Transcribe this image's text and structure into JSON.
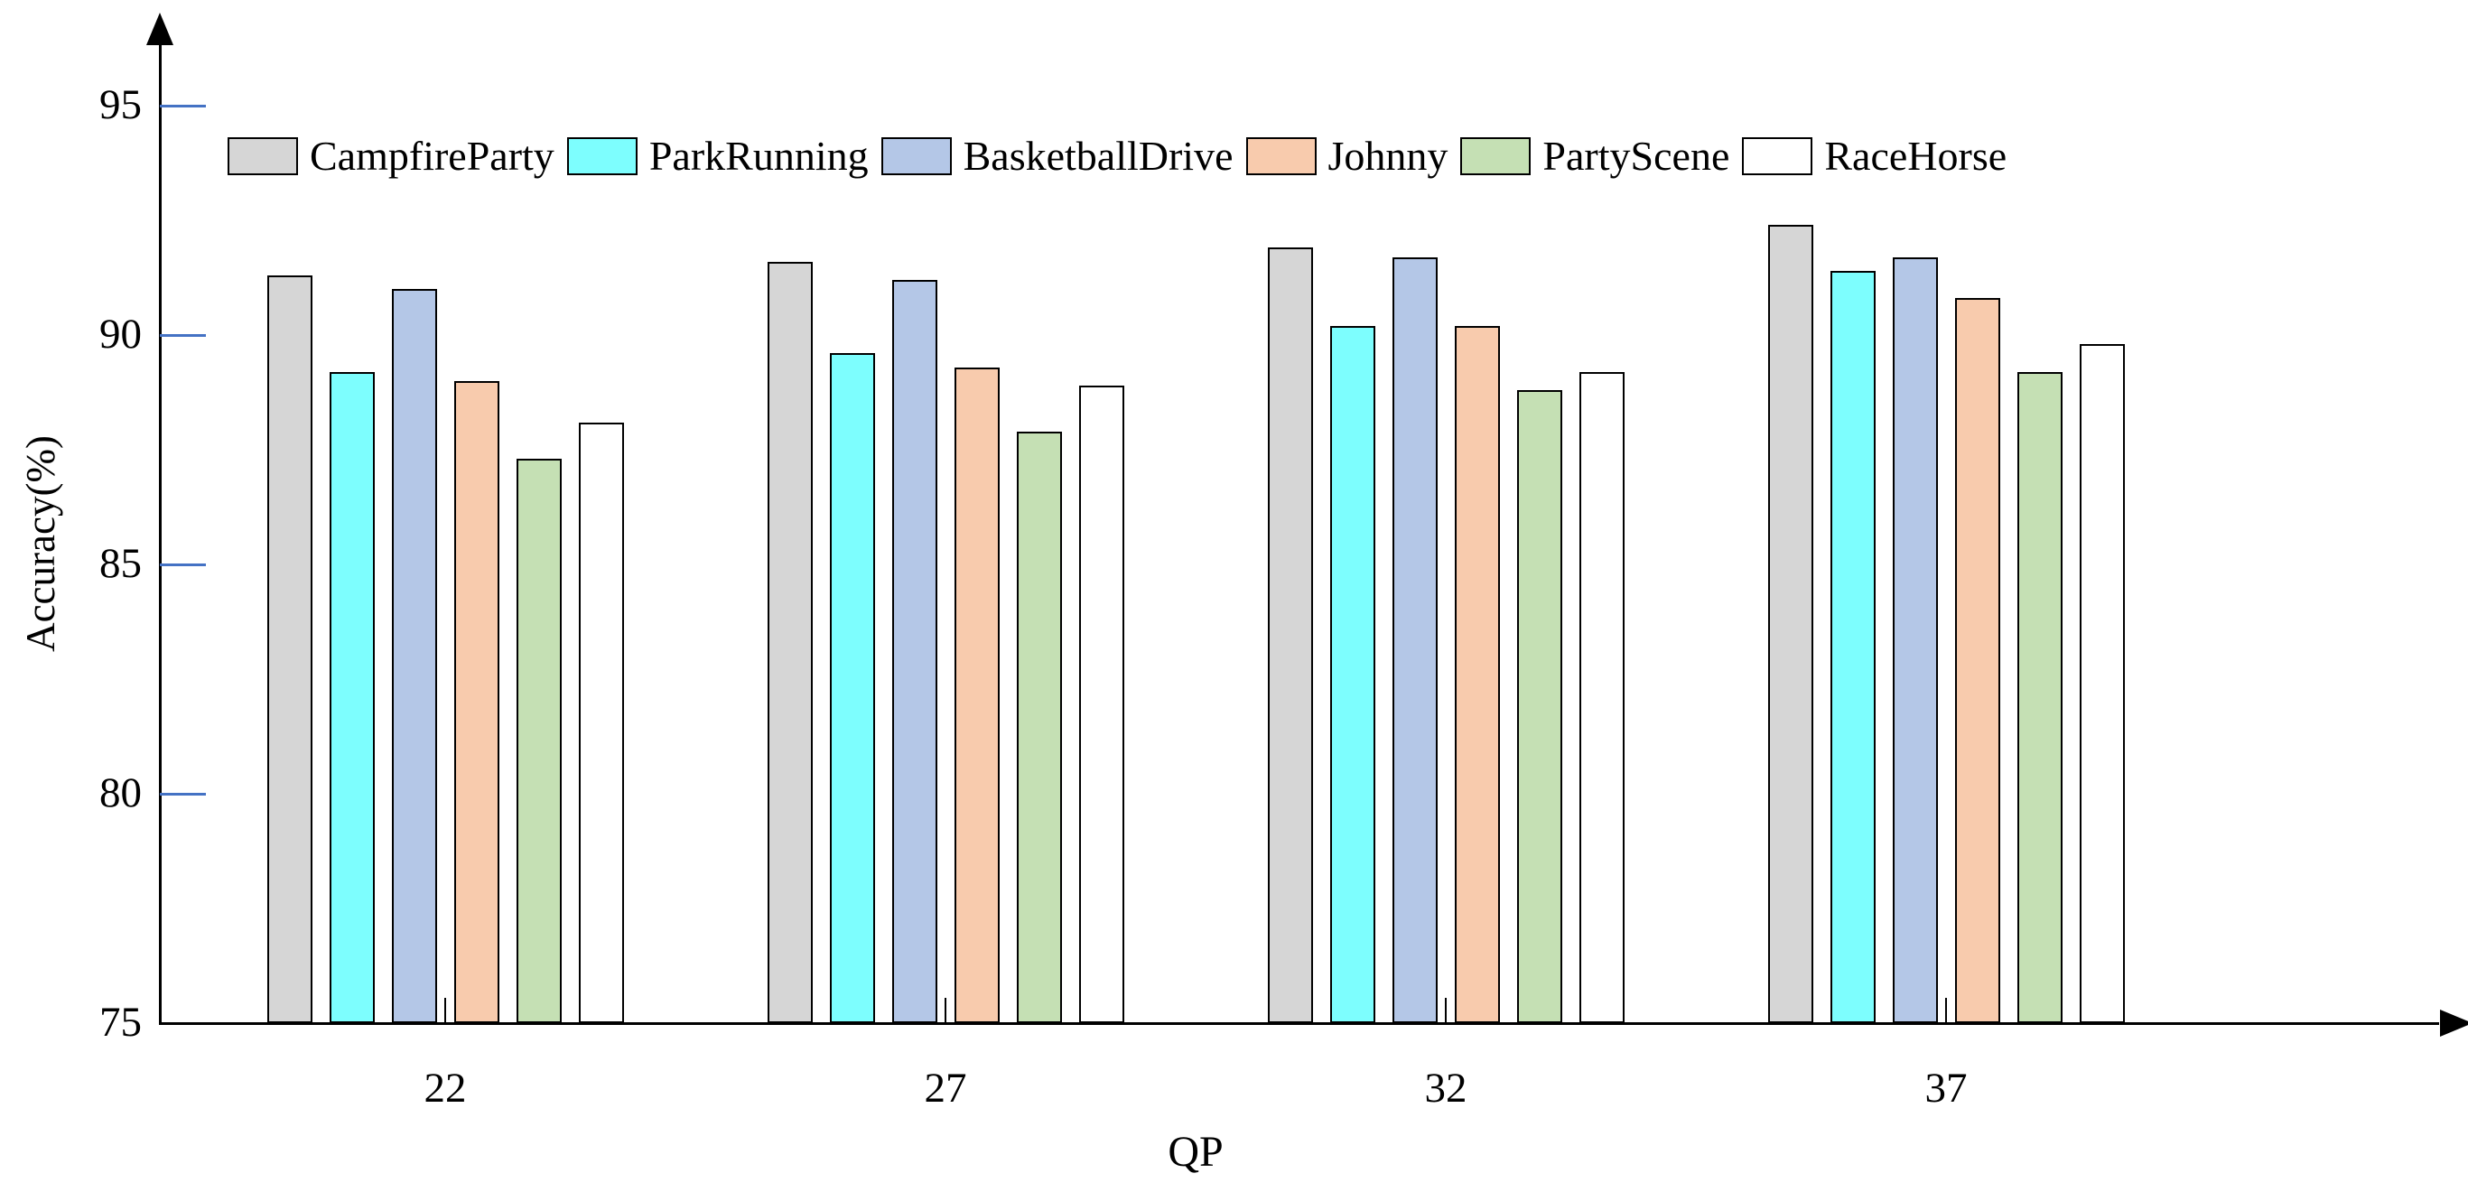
{
  "chart_data": {
    "type": "bar",
    "title": "",
    "xlabel": "QP",
    "ylabel": "Accuracy(%)",
    "categories": [
      "22",
      "27",
      "32",
      "37"
    ],
    "y_ticks": [
      "75",
      "80",
      "85",
      "90",
      "95"
    ],
    "ylim": [
      75,
      97
    ],
    "grid": false,
    "legend_position": "top-left-inside",
    "axis_color": "#000000",
    "ytick_dash_color": "#4472C4",
    "bar_border_color": "#000000",
    "series": [
      {
        "name": "CampfireParty",
        "color": "#D6D6D6",
        "values": [
          91.3,
          91.6,
          91.9,
          92.4
        ]
      },
      {
        "name": "ParkRunning",
        "color": "#7DFEFE",
        "values": [
          89.2,
          89.6,
          90.2,
          91.4
        ]
      },
      {
        "name": "BasketballDrive",
        "color": "#B4C7E7",
        "values": [
          91.0,
          91.2,
          91.7,
          91.7
        ]
      },
      {
        "name": "Johnny",
        "color": "#F8CBAD",
        "values": [
          89.0,
          89.3,
          90.2,
          90.8
        ]
      },
      {
        "name": "PartyScene",
        "color": "#C5E0B4",
        "values": [
          87.3,
          87.9,
          88.8,
          89.2
        ]
      },
      {
        "name": "RaceHorse",
        "color": "#FFFFFF",
        "values": [
          88.1,
          88.9,
          89.2,
          89.8
        ]
      }
    ]
  }
}
